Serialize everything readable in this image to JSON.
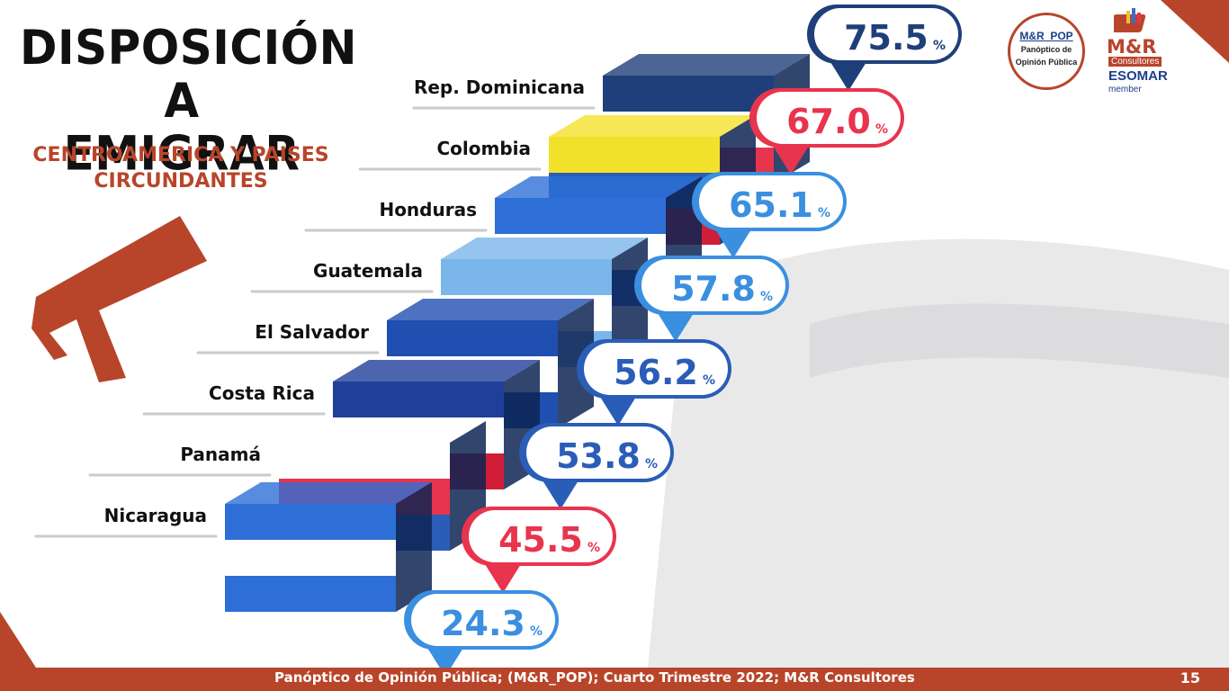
{
  "title_lines": [
    "DISPOSICIÓN A",
    "EMIGRAR"
  ],
  "subtitle_lines": [
    "CENTROAMERICA Y PAISES",
    "CIRCUNDANTES"
  ],
  "footer": "Panóptico de Opinión Pública; (M&R_POP); Cuarto Trimestre 2022; M&R Consultores",
  "page_number": "15",
  "logos": {
    "pop_line1": "M&R_POP",
    "pop_line2": "Panóptico de",
    "pop_line3": "Opinión Pública",
    "mr_brand": "M&R",
    "mr_sub": "Consultores",
    "esomar": "ESOMAR",
    "esomar_member": "member"
  },
  "colors": {
    "accent": "#b8452a",
    "blue": "#3a6fc6",
    "navy": "#1f3f7a",
    "red": "#e8344d",
    "light_blue": "#5aa8ee"
  },
  "chart_data": {
    "type": "bar",
    "title": "DISPOSICIÓN A EMIGRAR",
    "subtitle": "CENTROAMERICA Y PAISES CIRCUNDANTES",
    "unit": "%",
    "series_note": "",
    "categories": [
      "Rep. Dominicana",
      "Colombia",
      "Honduras",
      "Guatemala",
      "El Salvador",
      "Costa Rica",
      "Panamá",
      "Nicaragua"
    ],
    "values": [
      75.5,
      67.0,
      65.1,
      57.8,
      56.2,
      53.8,
      45.5,
      24.3
    ],
    "label_colors": [
      "#1f3f7a",
      "#e8344d",
      "#3a8fe0",
      "#3a8fe0",
      "#2a5db8",
      "#2a5db8",
      "#e8344d",
      "#3a8fe0"
    ],
    "ylim": [
      0,
      100
    ]
  }
}
